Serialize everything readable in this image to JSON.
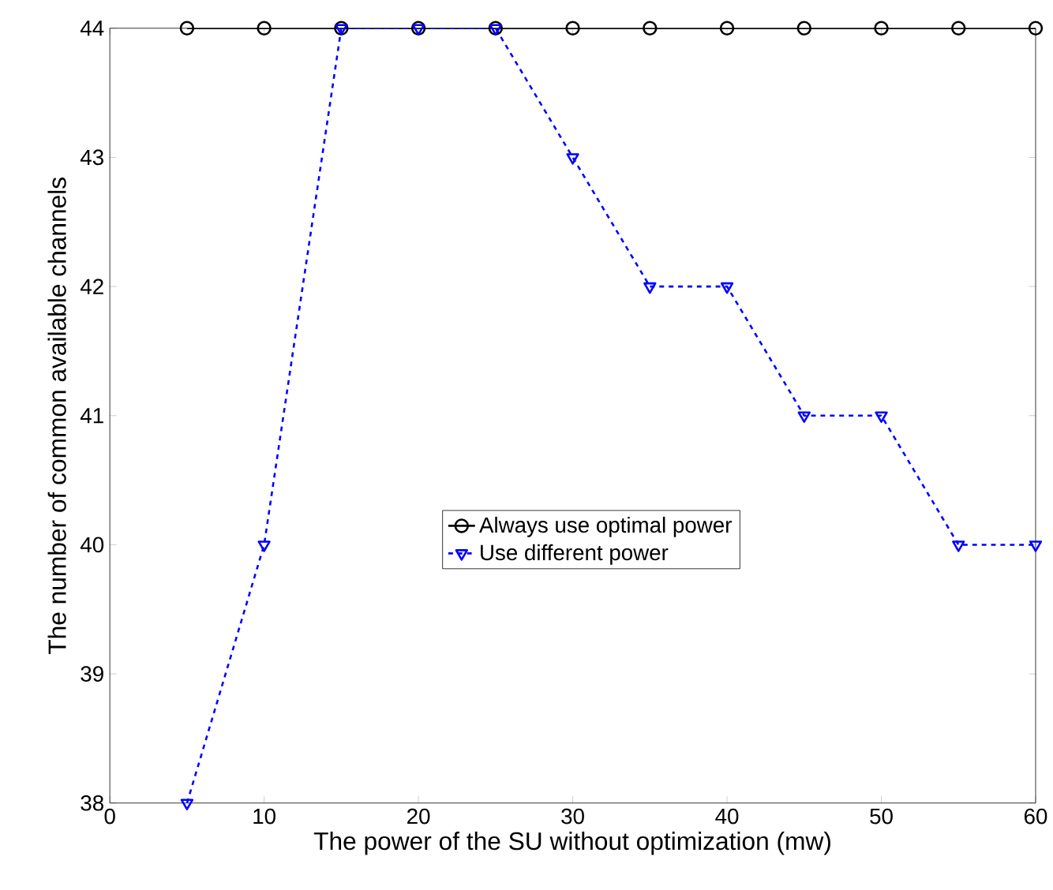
{
  "chart_data": {
    "type": "line",
    "xlabel": "The power of the SU without optimization (mw)",
    "ylabel": "The number of common available channels",
    "x": [
      5,
      10,
      15,
      20,
      25,
      30,
      35,
      40,
      45,
      50,
      55,
      60
    ],
    "series": [
      {
        "name": "Always use optimal power",
        "color": "#000000",
        "marker": "circle",
        "line_style": "solid",
        "values": [
          44,
          44,
          44,
          44,
          44,
          44,
          44,
          44,
          44,
          44,
          44,
          44
        ]
      },
      {
        "name": "Use different power",
        "color": "#0000ff",
        "marker": "triangle",
        "line_style": "dashed",
        "values": [
          38,
          40,
          44,
          44,
          44,
          43,
          42,
          42,
          41,
          41,
          40,
          40
        ]
      }
    ],
    "xlim": [
      0,
      60
    ],
    "ylim": [
      38,
      44
    ],
    "xticks": [
      0,
      10,
      20,
      30,
      40,
      50,
      60
    ],
    "yticks": [
      38,
      39,
      40,
      41,
      42,
      43,
      44
    ],
    "grid": false,
    "legend": "center"
  }
}
